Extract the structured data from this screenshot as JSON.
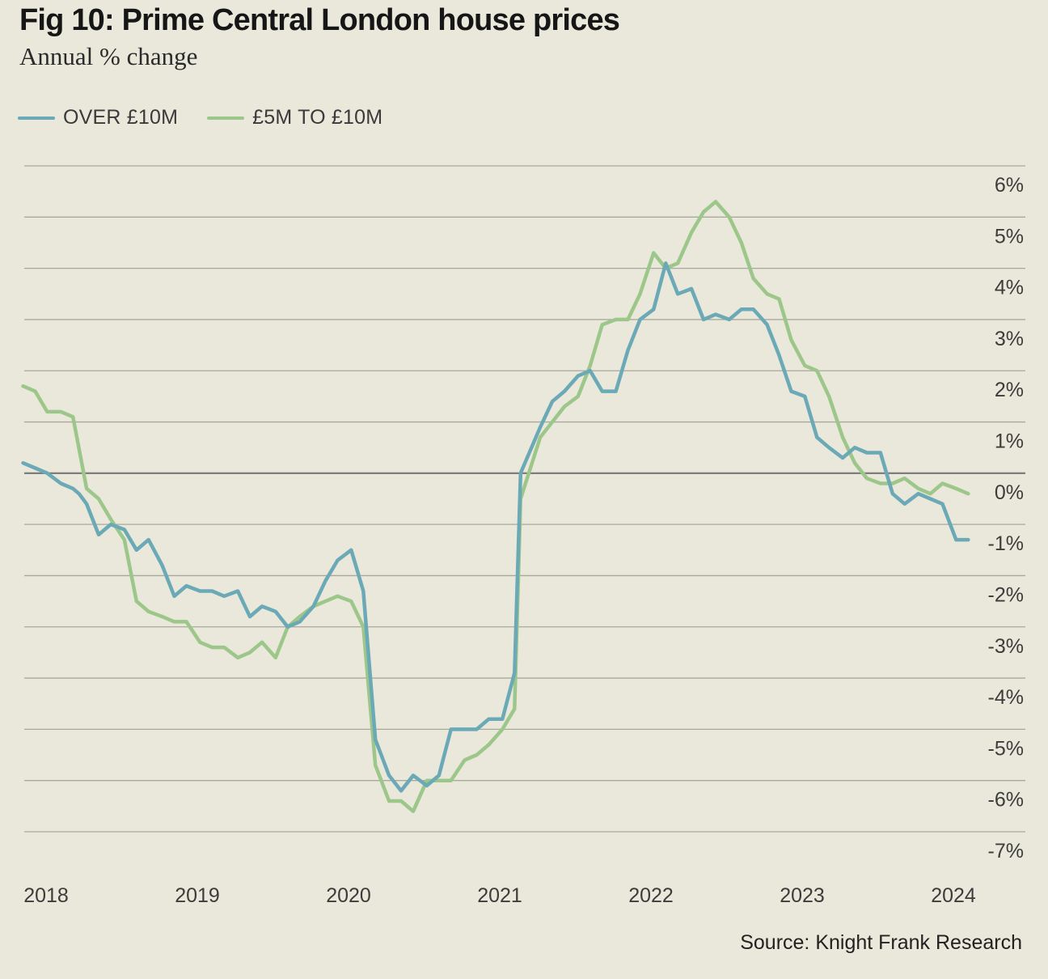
{
  "chart_data": {
    "type": "line",
    "title": "Fig 10: Prime Central London house prices",
    "subtitle": "Annual % change",
    "source": "Source: Knight Frank Research",
    "ylim": [
      -7,
      6
    ],
    "y_ticks": [
      6,
      5,
      4,
      3,
      2,
      1,
      0,
      -1,
      -2,
      -3,
      -4,
      -5,
      -6,
      -7
    ],
    "y_tick_labels": [
      "6%",
      "5%",
      "4%",
      "3%",
      "2%",
      "1%",
      "0%",
      "-1%",
      "-2%",
      "-3%",
      "-4%",
      "-5%",
      "-6%",
      "-7%"
    ],
    "x_ticks": [
      2018,
      2019,
      2020,
      2021,
      2022,
      2023,
      2024
    ],
    "x_tick_labels": [
      "2018",
      "2019",
      "2020",
      "2021",
      "2022",
      "2023",
      "2024"
    ],
    "grid": true,
    "legend_position": "top-left",
    "series": [
      {
        "name": "OVER £10M",
        "color": "#6aa9b5",
        "points": [
          [
            2017.96,
            0.2
          ],
          [
            2018.04,
            0.1
          ],
          [
            2018.12,
            0.0
          ],
          [
            2018.21,
            -0.2
          ],
          [
            2018.29,
            -0.3
          ],
          [
            2018.33,
            -0.4
          ],
          [
            2018.38,
            -0.6
          ],
          [
            2018.46,
            -1.2
          ],
          [
            2018.54,
            -1.0
          ],
          [
            2018.63,
            -1.1
          ],
          [
            2018.71,
            -1.5
          ],
          [
            2018.79,
            -1.3
          ],
          [
            2018.88,
            -1.8
          ],
          [
            2018.96,
            -2.4
          ],
          [
            2019.04,
            -2.2
          ],
          [
            2019.13,
            -2.3
          ],
          [
            2019.21,
            -2.3
          ],
          [
            2019.29,
            -2.4
          ],
          [
            2019.38,
            -2.3
          ],
          [
            2019.46,
            -2.8
          ],
          [
            2019.54,
            -2.6
          ],
          [
            2019.63,
            -2.7
          ],
          [
            2019.71,
            -3.0
          ],
          [
            2019.79,
            -2.9
          ],
          [
            2019.88,
            -2.6
          ],
          [
            2019.96,
            -2.1
          ],
          [
            2020.04,
            -1.7
          ],
          [
            2020.13,
            -1.5
          ],
          [
            2020.21,
            -2.3
          ],
          [
            2020.29,
            -5.2
          ],
          [
            2020.38,
            -5.9
          ],
          [
            2020.46,
            -6.2
          ],
          [
            2020.54,
            -5.9
          ],
          [
            2020.63,
            -6.1
          ],
          [
            2020.71,
            -5.9
          ],
          [
            2020.79,
            -5.0
          ],
          [
            2020.88,
            -5.0
          ],
          [
            2020.96,
            -5.0
          ],
          [
            2021.04,
            -4.8
          ],
          [
            2021.13,
            -4.8
          ],
          [
            2021.21,
            -3.9
          ],
          [
            2021.25,
            0.0
          ],
          [
            2021.38,
            0.9
          ],
          [
            2021.46,
            1.4
          ],
          [
            2021.54,
            1.6
          ],
          [
            2021.63,
            1.9
          ],
          [
            2021.71,
            2.0
          ],
          [
            2021.79,
            1.6
          ],
          [
            2021.88,
            1.6
          ],
          [
            2021.96,
            2.4
          ],
          [
            2022.04,
            3.0
          ],
          [
            2022.13,
            3.2
          ],
          [
            2022.21,
            4.1
          ],
          [
            2022.29,
            3.5
          ],
          [
            2022.38,
            3.6
          ],
          [
            2022.46,
            3.0
          ],
          [
            2022.54,
            3.1
          ],
          [
            2022.63,
            3.0
          ],
          [
            2022.71,
            3.2
          ],
          [
            2022.79,
            3.2
          ],
          [
            2022.88,
            2.9
          ],
          [
            2022.96,
            2.3
          ],
          [
            2023.04,
            1.6
          ],
          [
            2023.13,
            1.5
          ],
          [
            2023.21,
            0.7
          ],
          [
            2023.29,
            0.5
          ],
          [
            2023.38,
            0.3
          ],
          [
            2023.46,
            0.5
          ],
          [
            2023.54,
            0.4
          ],
          [
            2023.63,
            0.4
          ],
          [
            2023.71,
            -0.4
          ],
          [
            2023.79,
            -0.6
          ],
          [
            2023.88,
            -0.4
          ],
          [
            2023.96,
            -0.5
          ],
          [
            2024.04,
            -0.6
          ],
          [
            2024.13,
            -1.3
          ],
          [
            2024.21,
            -1.3
          ]
        ]
      },
      {
        "name": "£5M TO £10M",
        "color": "#9dc78a",
        "points": [
          [
            2017.96,
            1.7
          ],
          [
            2018.04,
            1.6
          ],
          [
            2018.12,
            1.2
          ],
          [
            2018.21,
            1.2
          ],
          [
            2018.29,
            1.1
          ],
          [
            2018.38,
            -0.3
          ],
          [
            2018.46,
            -0.5
          ],
          [
            2018.54,
            -0.9
          ],
          [
            2018.63,
            -1.3
          ],
          [
            2018.71,
            -2.5
          ],
          [
            2018.79,
            -2.7
          ],
          [
            2018.88,
            -2.8
          ],
          [
            2018.96,
            -2.9
          ],
          [
            2019.04,
            -2.9
          ],
          [
            2019.13,
            -3.3
          ],
          [
            2019.21,
            -3.4
          ],
          [
            2019.29,
            -3.4
          ],
          [
            2019.38,
            -3.6
          ],
          [
            2019.46,
            -3.5
          ],
          [
            2019.54,
            -3.3
          ],
          [
            2019.63,
            -3.6
          ],
          [
            2019.71,
            -3.0
          ],
          [
            2019.79,
            -2.8
          ],
          [
            2019.88,
            -2.6
          ],
          [
            2019.96,
            -2.5
          ],
          [
            2020.04,
            -2.4
          ],
          [
            2020.13,
            -2.5
          ],
          [
            2020.21,
            -3.0
          ],
          [
            2020.29,
            -5.7
          ],
          [
            2020.38,
            -6.4
          ],
          [
            2020.46,
            -6.4
          ],
          [
            2020.54,
            -6.6
          ],
          [
            2020.63,
            -6.0
          ],
          [
            2020.71,
            -6.0
          ],
          [
            2020.79,
            -6.0
          ],
          [
            2020.88,
            -5.6
          ],
          [
            2020.96,
            -5.5
          ],
          [
            2021.04,
            -5.3
          ],
          [
            2021.13,
            -5.0
          ],
          [
            2021.21,
            -4.6
          ],
          [
            2021.25,
            -0.5
          ],
          [
            2021.38,
            0.7
          ],
          [
            2021.46,
            1.0
          ],
          [
            2021.54,
            1.3
          ],
          [
            2021.63,
            1.5
          ],
          [
            2021.71,
            2.1
          ],
          [
            2021.79,
            2.9
          ],
          [
            2021.88,
            3.0
          ],
          [
            2021.96,
            3.0
          ],
          [
            2022.04,
            3.5
          ],
          [
            2022.13,
            4.3
          ],
          [
            2022.21,
            4.0
          ],
          [
            2022.29,
            4.1
          ],
          [
            2022.38,
            4.7
          ],
          [
            2022.46,
            5.1
          ],
          [
            2022.54,
            5.3
          ],
          [
            2022.63,
            5.0
          ],
          [
            2022.71,
            4.5
          ],
          [
            2022.79,
            3.8
          ],
          [
            2022.88,
            3.5
          ],
          [
            2022.96,
            3.4
          ],
          [
            2023.04,
            2.6
          ],
          [
            2023.13,
            2.1
          ],
          [
            2023.21,
            2.0
          ],
          [
            2023.29,
            1.5
          ],
          [
            2023.38,
            0.7
          ],
          [
            2023.46,
            0.2
          ],
          [
            2023.54,
            -0.1
          ],
          [
            2023.63,
            -0.2
          ],
          [
            2023.71,
            -0.2
          ],
          [
            2023.79,
            -0.1
          ],
          [
            2023.88,
            -0.3
          ],
          [
            2023.96,
            -0.4
          ],
          [
            2024.04,
            -0.2
          ],
          [
            2024.13,
            -0.3
          ],
          [
            2024.21,
            -0.4
          ]
        ]
      }
    ]
  }
}
